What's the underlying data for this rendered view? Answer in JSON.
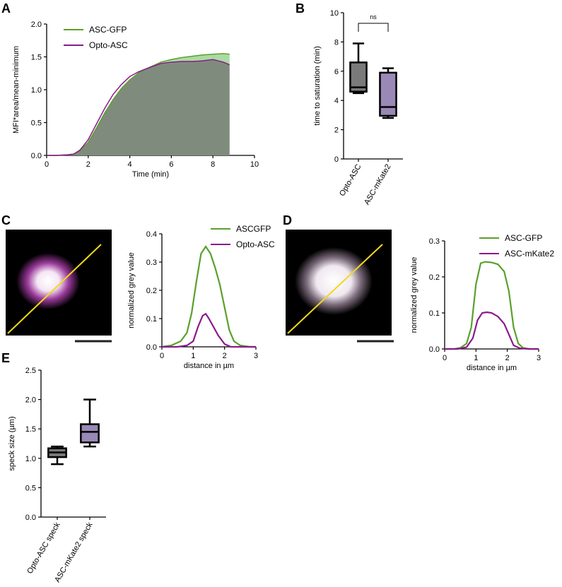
{
  "colors": {
    "green": "#5aa02c",
    "purple": "#8b1a8b",
    "grey_fill": "#7f8c7d",
    "yellow": "#f2d91a",
    "box_grey": "#7a7a7a",
    "box_purple": "#9a88b6"
  },
  "panels": {
    "a": "A",
    "b": "B",
    "c": "C",
    "d": "D",
    "e": "E"
  },
  "chart_data": [
    {
      "id": "A",
      "type": "line",
      "xlabel": "Time (min)",
      "ylabel": "MFI*area/mean-minimum",
      "xlim": [
        0,
        10
      ],
      "ylim": [
        0,
        2
      ],
      "xticks": [
        "0",
        "2",
        "4",
        "6",
        "8",
        "10"
      ],
      "yticks": [
        "0.0",
        "0.5",
        "1.0",
        "1.5",
        "2.0"
      ],
      "legend_position": "top-left",
      "series": [
        {
          "name": "ASC-GFP",
          "color": "#5aa02c",
          "x": [
            0,
            0.5,
            1,
            1.3,
            1.6,
            2,
            2.4,
            2.8,
            3.2,
            3.6,
            4,
            4.4,
            4.8,
            5.5,
            6,
            6.5,
            7,
            7.5,
            8,
            8.5,
            8.8
          ],
          "y": [
            0,
            0,
            0.01,
            0.02,
            0.07,
            0.2,
            0.42,
            0.65,
            0.85,
            1.02,
            1.15,
            1.25,
            1.32,
            1.42,
            1.46,
            1.49,
            1.51,
            1.53,
            1.54,
            1.55,
            1.54
          ]
        },
        {
          "name": "Opto-ASC",
          "color": "#8b1a8b",
          "x": [
            0,
            0.5,
            1,
            1.3,
            1.6,
            2,
            2.4,
            2.8,
            3.2,
            3.6,
            4,
            4.4,
            4.8,
            5.5,
            6,
            6.5,
            7,
            7.5,
            8,
            8.5,
            8.8
          ],
          "y": [
            0,
            0,
            0.01,
            0.02,
            0.08,
            0.24,
            0.48,
            0.72,
            0.93,
            1.08,
            1.2,
            1.27,
            1.32,
            1.4,
            1.42,
            1.43,
            1.43,
            1.44,
            1.46,
            1.42,
            1.38
          ]
        }
      ]
    },
    {
      "id": "B",
      "type": "box",
      "ylabel": "time to saturation (min)",
      "ylim": [
        0,
        10
      ],
      "yticks": [
        "0",
        "2",
        "4",
        "6",
        "8",
        "10"
      ],
      "categories": [
        "Opto-ASC",
        "ASC-mKate2"
      ],
      "boxes": [
        {
          "min": 4.5,
          "q1": 4.6,
          "median": 4.9,
          "q3": 6.6,
          "max": 7.9
        },
        {
          "min": 2.8,
          "q1": 2.95,
          "median": 3.55,
          "q3": 5.9,
          "max": 6.2
        }
      ],
      "annotation": "ns"
    },
    {
      "id": "C",
      "type": "line",
      "xlabel": "distance in µm",
      "ylabel": "normalized grey value",
      "xlim": [
        0,
        3
      ],
      "ylim": [
        0,
        0.4
      ],
      "xticks": [
        "0",
        "1",
        "2",
        "3"
      ],
      "yticks": [
        "0.0",
        "0.1",
        "0.2",
        "0.3",
        "0.4"
      ],
      "legend_position": "top-right",
      "series": [
        {
          "name": "ASCGFP",
          "color": "#5aa02c",
          "x": [
            0,
            0.3,
            0.6,
            0.8,
            0.95,
            1.1,
            1.25,
            1.4,
            1.55,
            1.7,
            1.85,
            2.0,
            2.15,
            2.3,
            2.5,
            2.8,
            3.0
          ],
          "y": [
            0,
            0.005,
            0.02,
            0.05,
            0.12,
            0.23,
            0.33,
            0.355,
            0.33,
            0.28,
            0.22,
            0.14,
            0.06,
            0.02,
            0.005,
            0,
            0
          ]
        },
        {
          "name": "Opto-ASC",
          "color": "#8b1a8b",
          "x": [
            0,
            0.5,
            0.8,
            1.0,
            1.15,
            1.3,
            1.4,
            1.5,
            1.65,
            1.8,
            2.0,
            2.2,
            2.5,
            3.0
          ],
          "y": [
            0,
            0,
            0.005,
            0.02,
            0.07,
            0.11,
            0.117,
            0.1,
            0.07,
            0.04,
            0.01,
            0,
            0,
            0
          ]
        }
      ]
    },
    {
      "id": "D",
      "type": "line",
      "xlabel": "distance in µm",
      "ylabel": "normalized grey value",
      "xlim": [
        0,
        3
      ],
      "ylim": [
        0,
        0.3
      ],
      "xticks": [
        "0",
        "1",
        "2",
        "3"
      ],
      "yticks": [
        "0.0",
        "0.1",
        "0.2",
        "0.3"
      ],
      "legend_position": "top-right",
      "series": [
        {
          "name": "ASC-GFP",
          "color": "#5aa02c",
          "x": [
            0,
            0.3,
            0.5,
            0.7,
            0.85,
            1.0,
            1.15,
            1.3,
            1.5,
            1.7,
            1.9,
            2.05,
            2.2,
            2.35,
            2.5,
            2.7,
            3.0
          ],
          "y": [
            0,
            0,
            0.003,
            0.015,
            0.06,
            0.18,
            0.238,
            0.242,
            0.24,
            0.235,
            0.215,
            0.16,
            0.06,
            0.015,
            0.003,
            0,
            0
          ]
        },
        {
          "name": "ASC-mKate2",
          "color": "#8b1a8b",
          "x": [
            0,
            0.4,
            0.7,
            0.9,
            1.05,
            1.2,
            1.35,
            1.5,
            1.7,
            1.9,
            2.05,
            2.2,
            2.4,
            2.7,
            3.0
          ],
          "y": [
            0,
            0,
            0.005,
            0.03,
            0.08,
            0.1,
            0.102,
            0.1,
            0.09,
            0.07,
            0.04,
            0.01,
            0.002,
            0,
            0
          ]
        }
      ]
    },
    {
      "id": "E",
      "type": "box",
      "ylabel": "speck size (µm)",
      "ylim": [
        0,
        2.5
      ],
      "yticks": [
        "0.0",
        "0.5",
        "1.0",
        "1.5",
        "2.0",
        "2.5"
      ],
      "categories": [
        "Opto-ASC speck",
        "ASC-mKate2 speck"
      ],
      "boxes": [
        {
          "min": 0.9,
          "q1": 1.02,
          "median": 1.1,
          "q3": 1.17,
          "max": 1.2
        },
        {
          "min": 1.2,
          "q1": 1.27,
          "median": 1.45,
          "q3": 1.58,
          "max": 2.0
        }
      ]
    }
  ]
}
